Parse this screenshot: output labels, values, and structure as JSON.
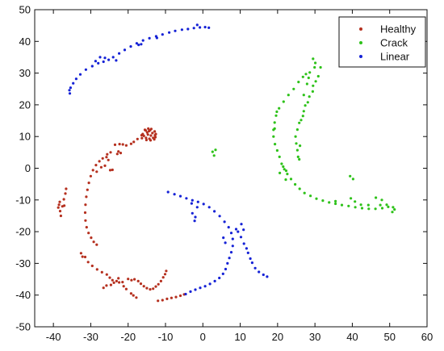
{
  "chart_data": {
    "type": "scatter",
    "title": "",
    "xlabel": "",
    "ylabel": "",
    "xlim": [
      -45,
      60
    ],
    "ylim": [
      -50,
      50
    ],
    "xticks": [
      -40,
      -30,
      -20,
      -10,
      0,
      10,
      20,
      30,
      40,
      50,
      60
    ],
    "yticks": [
      -50,
      -40,
      -30,
      -20,
      -10,
      0,
      10,
      20,
      30,
      40,
      50
    ],
    "grid": false,
    "legend_position": "top-right",
    "series": [
      {
        "name": "Healthy",
        "color": "#b5301f",
        "points": [
          [
            -15.8,
            10.2
          ],
          [
            -14.9,
            11.3
          ],
          [
            -14.1,
            12.0
          ],
          [
            -13.5,
            11.1
          ],
          [
            -12.8,
            10.4
          ],
          [
            -13.3,
            9.6
          ],
          [
            -14.3,
            9.3
          ],
          [
            -15.2,
            9.6
          ],
          [
            -16.1,
            10.8
          ],
          [
            -15.5,
            12.1
          ],
          [
            -14.6,
            12.5
          ],
          [
            -13.8,
            12.4
          ],
          [
            -12.9,
            11.6
          ],
          [
            -12.6,
            10.8
          ],
          [
            -13.0,
            9.1
          ],
          [
            -14.0,
            8.8
          ],
          [
            -15.1,
            8.9
          ],
          [
            -16.3,
            9.5
          ],
          [
            -16.4,
            10.4
          ],
          [
            -14.7,
            10.6
          ],
          [
            -13.9,
            10.3
          ],
          [
            -14.4,
            11.7
          ],
          [
            -15.3,
            11.9
          ],
          [
            -12.7,
            9.8
          ],
          [
            -17.5,
            9.2
          ],
          [
            -18.5,
            8.3
          ],
          [
            -19.2,
            7.7
          ],
          [
            -20.5,
            7.2
          ],
          [
            -21.4,
            7.5
          ],
          [
            -22.3,
            7.6
          ],
          [
            -23.5,
            7.4
          ],
          [
            -22.0,
            4.8
          ],
          [
            -22.9,
            4.5
          ],
          [
            -22.6,
            5.3
          ],
          [
            -24.7,
            5.0
          ],
          [
            -25.6,
            4.4
          ],
          [
            -26.8,
            3.1
          ],
          [
            -27.7,
            2.2
          ],
          [
            -28.6,
            1.0
          ],
          [
            -29.4,
            -0.6
          ],
          [
            -30.0,
            -2.5
          ],
          [
            -30.5,
            -4.6
          ],
          [
            -30.9,
            -6.8
          ],
          [
            -31.2,
            -9.0
          ],
          [
            -31.4,
            -11.5
          ],
          [
            -31.5,
            -14.0
          ],
          [
            -31.4,
            -16.5
          ],
          [
            -31.1,
            -18.6
          ],
          [
            -30.6,
            -20.4
          ],
          [
            -29.9,
            -21.9
          ],
          [
            -29.2,
            -23.2
          ],
          [
            -28.4,
            -24.1
          ],
          [
            -25.8,
            3.5
          ],
          [
            -25.3,
            2.6
          ],
          [
            -26.2,
            0.8
          ],
          [
            -27.2,
            0.3
          ],
          [
            -28.4,
            -1.1
          ],
          [
            -24.2,
            -0.5
          ],
          [
            -24.8,
            -0.6
          ],
          [
            -36.6,
            -6.5
          ],
          [
            -36.8,
            -8.0
          ],
          [
            -37.2,
            -9.8
          ],
          [
            -38.5,
            -11.5
          ],
          [
            -38.7,
            -12.4
          ],
          [
            -38.2,
            -13.5
          ],
          [
            -38.0,
            -15.0
          ],
          [
            -37.6,
            -12.0
          ],
          [
            -37.1,
            -11.8
          ],
          [
            -38.3,
            -10.6
          ],
          [
            -32.6,
            -26.8
          ],
          [
            -32.2,
            -27.9
          ],
          [
            -31.5,
            -28.0
          ],
          [
            -30.7,
            -29.6
          ],
          [
            -29.6,
            -30.8
          ],
          [
            -28.3,
            -31.9
          ],
          [
            -27.0,
            -32.8
          ],
          [
            -25.7,
            -33.5
          ],
          [
            -24.9,
            -34.5
          ],
          [
            -24.2,
            -35.3
          ],
          [
            -23.1,
            -35.6
          ],
          [
            -22.4,
            -36.0
          ],
          [
            -21.5,
            -35.9
          ],
          [
            -21.2,
            -37.2
          ],
          [
            -20.5,
            -38.1
          ],
          [
            -22.6,
            -34.7
          ],
          [
            -23.8,
            -36.1
          ],
          [
            -24.6,
            -36.8
          ],
          [
            -20.0,
            -34.9
          ],
          [
            -19.1,
            -35.3
          ],
          [
            -18.3,
            -35.0
          ],
          [
            -17.3,
            -35.6
          ],
          [
            -16.6,
            -36.4
          ],
          [
            -15.8,
            -37.2
          ],
          [
            -15.0,
            -37.8
          ],
          [
            -14.1,
            -38.2
          ],
          [
            -13.3,
            -38.0
          ],
          [
            -12.6,
            -37.3
          ],
          [
            -11.9,
            -36.6
          ],
          [
            -11.2,
            -35.6
          ],
          [
            -10.6,
            -34.4
          ],
          [
            -10.1,
            -33.4
          ],
          [
            -9.8,
            -32.4
          ],
          [
            -19.2,
            -39.5
          ],
          [
            -18.6,
            -40.1
          ],
          [
            -17.8,
            -40.8
          ],
          [
            -12.0,
            -41.8
          ],
          [
            -10.8,
            -41.6
          ],
          [
            -9.6,
            -41.2
          ],
          [
            -8.4,
            -40.9
          ],
          [
            -7.2,
            -40.6
          ],
          [
            -6.0,
            -40.2
          ],
          [
            -5.0,
            -39.8
          ],
          [
            -26.6,
            -37.7
          ],
          [
            -25.8,
            -37.0
          ]
        ]
      },
      {
        "name": "Crack",
        "color": "#2ec21a",
        "points": [
          [
            29.5,
            34.5
          ],
          [
            30.1,
            33.2
          ],
          [
            29.9,
            31.8
          ],
          [
            28.6,
            30.2
          ],
          [
            27.6,
            29.7
          ],
          [
            26.8,
            28.8
          ],
          [
            25.6,
            27.2
          ],
          [
            24.3,
            25.0
          ],
          [
            22.9,
            23.1
          ],
          [
            21.6,
            21.0
          ],
          [
            20.4,
            18.9
          ],
          [
            19.6,
            16.6
          ],
          [
            19.2,
            14.4
          ],
          [
            18.9,
            12.1
          ],
          [
            18.9,
            10.0
          ],
          [
            19.3,
            7.6
          ],
          [
            19.9,
            5.6
          ],
          [
            20.5,
            3.6
          ],
          [
            21.1,
            1.4
          ],
          [
            21.8,
            -0.3
          ],
          [
            22.6,
            -1.8
          ],
          [
            23.6,
            -3.4
          ],
          [
            24.7,
            -5.1
          ],
          [
            25.9,
            -6.5
          ],
          [
            27.2,
            -7.8
          ],
          [
            28.8,
            -8.7
          ],
          [
            30.4,
            -9.6
          ],
          [
            32.1,
            -10.2
          ],
          [
            33.8,
            -10.8
          ],
          [
            35.5,
            -11.2
          ],
          [
            37.2,
            -11.6
          ],
          [
            39.0,
            -11.9
          ],
          [
            40.8,
            -12.3
          ],
          [
            42.6,
            -12.6
          ],
          [
            44.4,
            -12.8
          ],
          [
            46.2,
            -12.8
          ],
          [
            48.0,
            -12.6
          ],
          [
            49.6,
            -12.2
          ],
          [
            50.9,
            -12.3
          ],
          [
            51.3,
            -13.0
          ],
          [
            50.7,
            -13.8
          ],
          [
            49.2,
            -11.5
          ],
          [
            47.5,
            -11.6
          ],
          [
            31.5,
            31.8
          ],
          [
            30.9,
            29.0
          ],
          [
            30.2,
            27.4
          ],
          [
            29.5,
            26.0
          ],
          [
            29.4,
            24.2
          ],
          [
            28.5,
            22.6
          ],
          [
            28.1,
            20.8
          ],
          [
            27.4,
            19.8
          ],
          [
            27.0,
            18.0
          ],
          [
            26.8,
            16.5
          ],
          [
            26.3,
            15.2
          ],
          [
            25.8,
            14.3
          ],
          [
            25.3,
            12.2
          ],
          [
            24.8,
            10.0
          ],
          [
            25.0,
            7.8
          ],
          [
            25.3,
            5.7
          ],
          [
            25.5,
            3.6
          ],
          [
            25.8,
            2.8
          ],
          [
            26.0,
            7.1
          ],
          [
            27.9,
            26.6
          ],
          [
            28.3,
            28.5
          ],
          [
            27.0,
            23.1
          ],
          [
            21.5,
            0.5
          ],
          [
            22.3,
            -0.8
          ],
          [
            20.6,
            -1.5
          ],
          [
            22.2,
            -3.6
          ],
          [
            19.2,
            12.5
          ],
          [
            19.8,
            17.8
          ],
          [
            35.5,
            -10.4
          ],
          [
            40.7,
            -10.5
          ],
          [
            39.6,
            -9.5
          ],
          [
            39.4,
            -2.5
          ],
          [
            40.2,
            -3.4
          ],
          [
            44.3,
            -11.6
          ],
          [
            46.3,
            -9.3
          ],
          [
            47.9,
            -10.0
          ],
          [
            42.3,
            -11.5
          ],
          [
            3.0,
            4.0
          ],
          [
            2.6,
            5.2
          ],
          [
            3.4,
            5.8
          ]
        ]
      },
      {
        "name": "Linear",
        "color": "#1522d6",
        "points": [
          [
            -35.6,
            23.6
          ],
          [
            -35.7,
            24.6
          ],
          [
            -35.4,
            25.4
          ],
          [
            -34.7,
            26.8
          ],
          [
            -33.9,
            28.2
          ],
          [
            -32.8,
            29.6
          ],
          [
            -31.3,
            31.1
          ],
          [
            -29.6,
            32.2
          ],
          [
            -28.0,
            33.1
          ],
          [
            -26.6,
            33.6
          ],
          [
            -25.2,
            34.2
          ],
          [
            -24.0,
            35.0
          ],
          [
            -22.4,
            36.2
          ],
          [
            -20.9,
            37.3
          ],
          [
            -19.3,
            38.4
          ],
          [
            -17.7,
            39.4
          ],
          [
            -16.0,
            40.3
          ],
          [
            -14.3,
            41.0
          ],
          [
            -12.5,
            41.6
          ],
          [
            -10.8,
            42.2
          ],
          [
            -9.0,
            42.8
          ],
          [
            -7.4,
            43.3
          ],
          [
            -5.6,
            43.7
          ],
          [
            -4.0,
            43.9
          ],
          [
            -2.4,
            44.2
          ],
          [
            -0.8,
            44.4
          ],
          [
            0.6,
            44.5
          ],
          [
            1.6,
            44.3
          ],
          [
            -1.5,
            45.2
          ],
          [
            -12.3,
            41.1
          ],
          [
            -16.5,
            39.1
          ],
          [
            -17.2,
            38.9
          ],
          [
            -23.2,
            34.0
          ],
          [
            -26.2,
            34.8
          ],
          [
            -27.5,
            35.0
          ],
          [
            -28.7,
            33.8
          ],
          [
            -9.3,
            -7.5
          ],
          [
            -7.6,
            -8.2
          ],
          [
            -6.0,
            -8.8
          ],
          [
            -4.4,
            -9.5
          ],
          [
            -2.8,
            -10.1
          ],
          [
            -1.3,
            -10.6
          ],
          [
            0.2,
            -11.3
          ],
          [
            1.7,
            -12.3
          ],
          [
            3.1,
            -13.6
          ],
          [
            4.5,
            -15.1
          ],
          [
            5.8,
            -16.9
          ],
          [
            6.9,
            -18.6
          ],
          [
            7.6,
            -20.4
          ],
          [
            8.0,
            -22.3
          ],
          [
            8.0,
            -24.5
          ],
          [
            7.6,
            -26.5
          ],
          [
            7.1,
            -28.3
          ],
          [
            6.6,
            -30.0
          ],
          [
            6.1,
            -31.8
          ],
          [
            5.4,
            -33.3
          ],
          [
            4.4,
            -34.6
          ],
          [
            3.2,
            -35.6
          ],
          [
            1.9,
            -36.5
          ],
          [
            0.6,
            -37.2
          ],
          [
            -0.7,
            -37.7
          ],
          [
            -2.0,
            -38.3
          ],
          [
            -3.3,
            -38.9
          ],
          [
            -4.6,
            -39.7
          ],
          [
            -1.5,
            -12.3
          ],
          [
            -3.0,
            -11.1
          ],
          [
            -2.8,
            -14.2
          ],
          [
            -2.0,
            -15.4
          ],
          [
            -2.2,
            -16.6
          ],
          [
            5.5,
            -21.9
          ],
          [
            6.0,
            -23.5
          ],
          [
            9.4,
            -20.0
          ],
          [
            10.2,
            -21.7
          ],
          [
            11.0,
            -23.8
          ],
          [
            11.7,
            -25.3
          ],
          [
            12.1,
            -26.7
          ],
          [
            12.7,
            -28.5
          ],
          [
            13.2,
            -29.8
          ],
          [
            14.0,
            -31.5
          ],
          [
            15.0,
            -32.7
          ],
          [
            16.2,
            -33.6
          ],
          [
            17.2,
            -34.2
          ],
          [
            10.3,
            -17.6
          ],
          [
            10.9,
            -19.4
          ],
          [
            8.9,
            -19.2
          ]
        ]
      }
    ]
  }
}
